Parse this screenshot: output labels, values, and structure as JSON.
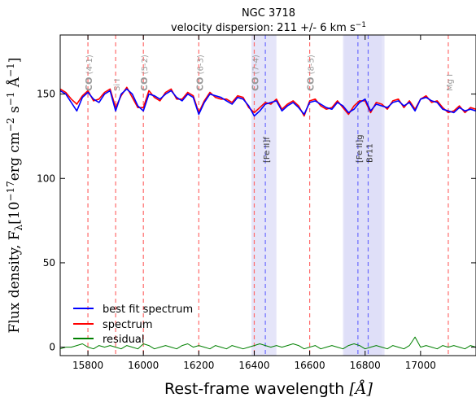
{
  "chart_data": {
    "type": "line",
    "title": "NGC 3718",
    "subtitle": "velocity dispersion: 211 +/- 6 km s",
    "subtitle_exp": "−1",
    "xlabel": "Rest-frame wavelength",
    "xlabel_unit": "[Å]",
    "ylabel": "Flux density,  F",
    "ylabel_sub": "λ",
    "ylabel_unit": "[10",
    "ylabel_exp1": "−17",
    "ylabel_unit2": "erg cm",
    "ylabel_exp2": "−2",
    "ylabel_unit3": " s",
    "ylabel_exp3": "−1",
    "ylabel_unit4": " Å",
    "ylabel_exp4": "−1",
    "ylabel_end": "]",
    "xlim": [
      15700,
      17200
    ],
    "ylim": [
      -5,
      185
    ],
    "xticks": [
      15800,
      16000,
      16200,
      16400,
      16600,
      16800,
      17000
    ],
    "xtick_labels": [
      "15800",
      "16000",
      "16200",
      "16400",
      "16600",
      "16800",
      "17000"
    ],
    "yticks": [
      0,
      50,
      100,
      150
    ],
    "ytick_labels": [
      "0",
      "50",
      "100",
      "150"
    ],
    "grid": false,
    "legend_position": "bottom-left",
    "colors": {
      "best_fit": "#0000ff",
      "spectrum": "#ff0000",
      "residual": "#008000",
      "stellar_line": "#ff6a6a",
      "gas_line": "#6b6bff",
      "gas_band": "#dcdcf7",
      "annotation": "#999999"
    },
    "series": [
      {
        "name": "best fit spectrum",
        "key": "best_fit",
        "x": [
          15700,
          15720,
          15740,
          15760,
          15780,
          15800,
          15820,
          15840,
          15860,
          15880,
          15900,
          15920,
          15940,
          15960,
          15980,
          16000,
          16020,
          16040,
          16060,
          16080,
          16100,
          16120,
          16140,
          16160,
          16180,
          16200,
          16220,
          16240,
          16260,
          16280,
          16300,
          16320,
          16340,
          16360,
          16380,
          16400,
          16420,
          16440,
          16460,
          16480,
          16500,
          16520,
          16540,
          16560,
          16580,
          16600,
          16620,
          16640,
          16660,
          16680,
          16700,
          16720,
          16740,
          16760,
          16780,
          16800,
          16820,
          16840,
          16860,
          16880,
          16900,
          16920,
          16940,
          16960,
          16980,
          17000,
          17020,
          17040,
          17060,
          17080,
          17100,
          17120,
          17140,
          17160,
          17180,
          17200
        ],
        "values": [
          152,
          150,
          145,
          140,
          148,
          151,
          147,
          145,
          150,
          152,
          140,
          150,
          153,
          150,
          143,
          140,
          150,
          149,
          147,
          150,
          152,
          148,
          146,
          150,
          148,
          138,
          145,
          150,
          149,
          148,
          146,
          144,
          148,
          147,
          143,
          137,
          140,
          144,
          145,
          146,
          140,
          143,
          145,
          142,
          138,
          145,
          146,
          144,
          142,
          141,
          145,
          143,
          139,
          141,
          145,
          147,
          140,
          144,
          143,
          142,
          145,
          146,
          143,
          145,
          140,
          147,
          148,
          146,
          145,
          141,
          140,
          139,
          142,
          140,
          141,
          140
        ]
      },
      {
        "name": "spectrum",
        "key": "spectrum",
        "x": [
          15700,
          15720,
          15740,
          15760,
          15780,
          15800,
          15820,
          15840,
          15860,
          15880,
          15900,
          15920,
          15940,
          15960,
          15980,
          16000,
          16020,
          16040,
          16060,
          16080,
          16100,
          16120,
          16140,
          16160,
          16180,
          16200,
          16220,
          16240,
          16260,
          16280,
          16300,
          16320,
          16340,
          16360,
          16380,
          16400,
          16420,
          16440,
          16460,
          16480,
          16500,
          16520,
          16540,
          16560,
          16580,
          16600,
          16620,
          16640,
          16660,
          16680,
          16700,
          16720,
          16740,
          16760,
          16780,
          16800,
          16820,
          16840,
          16860,
          16880,
          16900,
          16920,
          16940,
          16960,
          16980,
          17000,
          17020,
          17040,
          17060,
          17080,
          17100,
          17120,
          17140,
          17160,
          17180,
          17200
        ],
        "values": [
          153,
          151,
          147,
          144,
          149,
          152,
          146,
          147,
          151,
          153,
          142,
          149,
          154,
          148,
          142,
          142,
          152,
          148,
          146,
          151,
          153,
          147,
          147,
          151,
          149,
          139,
          146,
          151,
          148,
          147,
          147,
          145,
          149,
          148,
          142,
          139,
          142,
          145,
          144,
          147,
          141,
          144,
          146,
          143,
          137,
          146,
          147,
          143,
          141,
          142,
          146,
          142,
          138,
          143,
          146,
          146,
          139,
          145,
          144,
          141,
          146,
          147,
          142,
          146,
          141,
          147,
          149,
          145,
          146,
          142,
          139,
          140,
          143,
          139,
          142,
          141
        ]
      },
      {
        "name": "residual",
        "key": "residual",
        "x": [
          15700,
          15720,
          15740,
          15760,
          15780,
          15800,
          15820,
          15840,
          15860,
          15880,
          15900,
          15920,
          15940,
          15960,
          15980,
          16000,
          16020,
          16040,
          16060,
          16080,
          16100,
          16120,
          16140,
          16160,
          16180,
          16200,
          16220,
          16240,
          16260,
          16280,
          16300,
          16320,
          16340,
          16360,
          16380,
          16400,
          16420,
          16440,
          16460,
          16480,
          16500,
          16520,
          16540,
          16560,
          16580,
          16600,
          16620,
          16640,
          16660,
          16680,
          16700,
          16720,
          16740,
          16760,
          16780,
          16800,
          16820,
          16840,
          16860,
          16880,
          16900,
          16920,
          16940,
          16960,
          16980,
          17000,
          17020,
          17040,
          17060,
          17080,
          17100,
          17120,
          17140,
          17160,
          17180,
          17200
        ],
        "values": [
          -1,
          0,
          0,
          1,
          2,
          0,
          -1,
          1,
          0,
          1,
          0,
          -1,
          1,
          0,
          -1,
          2,
          1,
          -1,
          0,
          1,
          0,
          -1,
          1,
          2,
          0,
          1,
          0,
          -1,
          1,
          0,
          -1,
          1,
          0,
          -1,
          0,
          1,
          2,
          1,
          0,
          1,
          0,
          1,
          2,
          1,
          -1,
          0,
          1,
          -1,
          0,
          1,
          0,
          -1,
          1,
          2,
          1,
          -1,
          0,
          1,
          0,
          -1,
          1,
          0,
          -1,
          1,
          6,
          0,
          1,
          0,
          -1,
          1,
          0,
          1,
          0,
          -1,
          1,
          0
        ]
      }
    ],
    "stellar_lines": [
      {
        "x": 15800,
        "label": "CO",
        "label2": " (4-1)"
      },
      {
        "x": 15900,
        "label": "Si I",
        "label2": ""
      },
      {
        "x": 16000,
        "label": "CO",
        "label2": " (5-2)"
      },
      {
        "x": 16200,
        "label": "CO",
        "label2": " (6-3)"
      },
      {
        "x": 16400,
        "label": "CO",
        "label2": " (7-4)"
      },
      {
        "x": 16600,
        "label": "CO",
        "label2": " (8-5)"
      },
      {
        "x": 17100,
        "label": "Mg I",
        "label2": ""
      }
    ],
    "gas_lines": [
      {
        "x": 16440,
        "label": "[Fe II]f"
      },
      {
        "x": 16774,
        "label": "[Fe II]g"
      },
      {
        "x": 16811,
        "label": "Br11"
      }
    ],
    "gas_bands": [
      {
        "x0": 16390,
        "x1": 16480,
        "y0": -5,
        "y1": 185
      },
      {
        "x0": 16720,
        "x1": 16870,
        "y0": -5,
        "y1": 185
      },
      {
        "x0": 16725,
        "x1": 16860,
        "y0": -5,
        "y1": 185
      }
    ],
    "legend": [
      {
        "label": "best fit spectrum",
        "key": "best_fit"
      },
      {
        "label": "spectrum",
        "key": "spectrum"
      },
      {
        "label": "residual",
        "key": "residual"
      }
    ]
  }
}
